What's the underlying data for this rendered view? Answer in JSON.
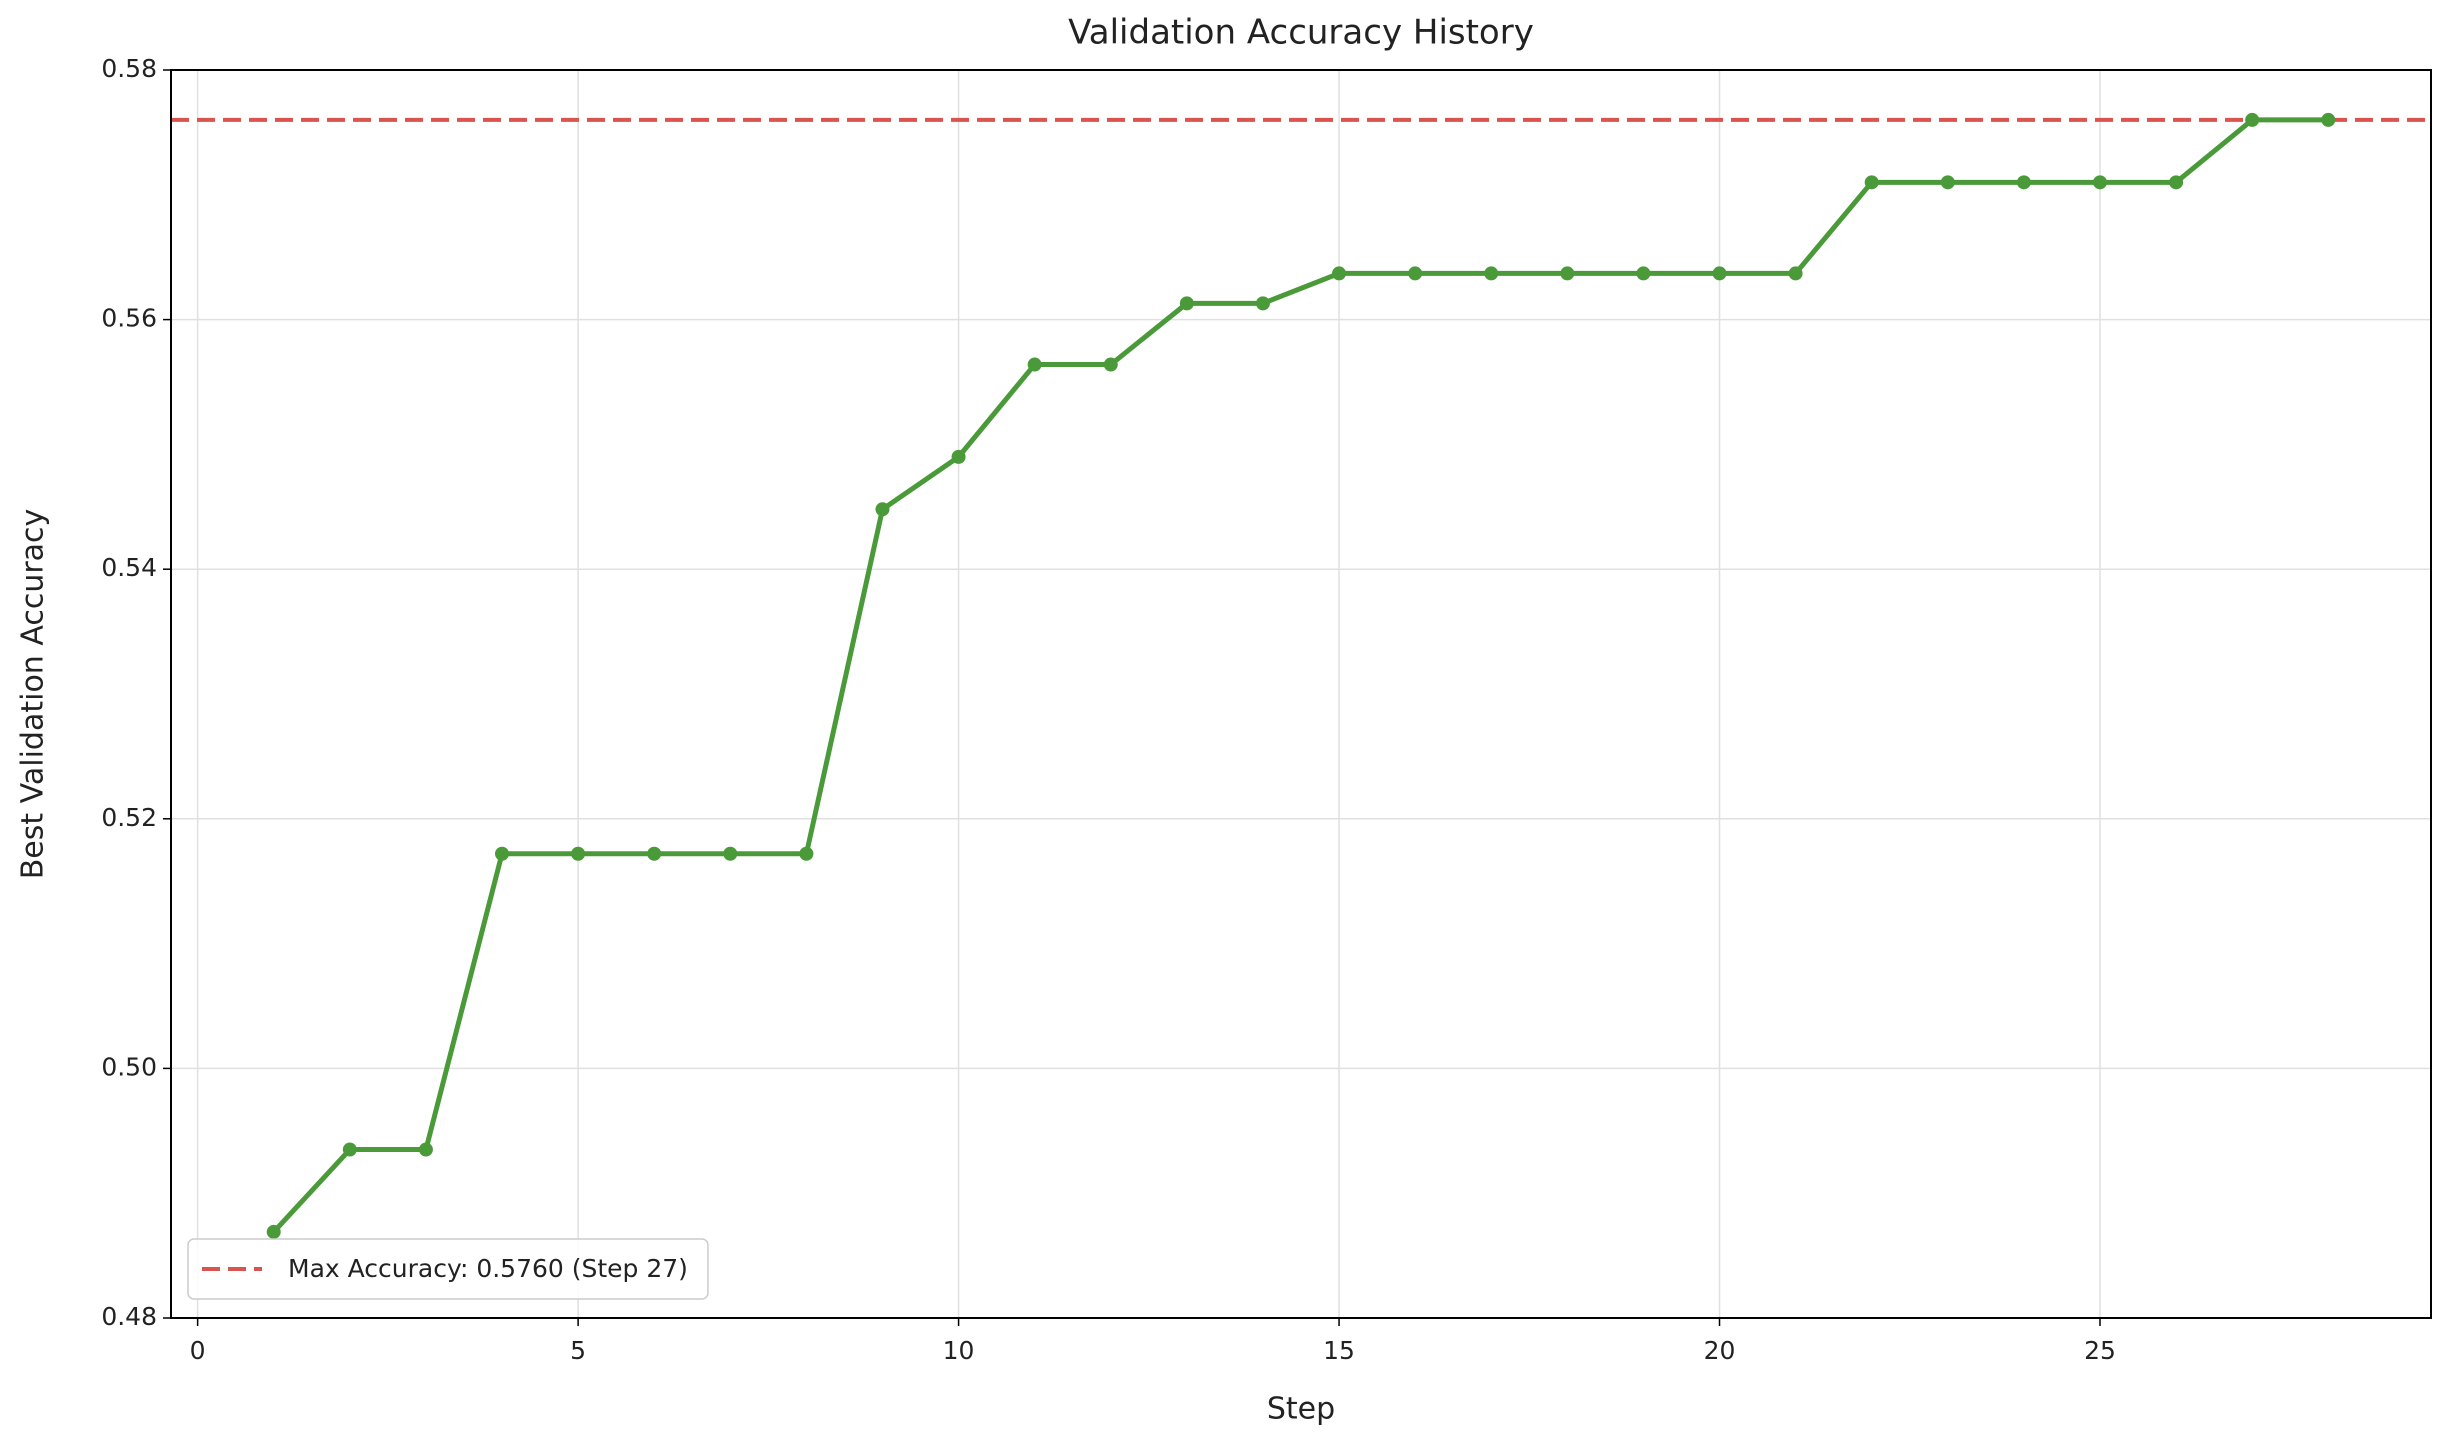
{
  "chart_data": {
    "type": "line",
    "title": "Validation Accuracy History",
    "x_label": "Step",
    "y_label": "Best Validation Accuracy",
    "x": [
      1,
      2,
      3,
      4,
      5,
      6,
      7,
      8,
      9,
      10,
      11,
      12,
      13,
      14,
      15,
      16,
      17,
      18,
      19,
      20,
      21,
      22,
      23,
      24,
      25,
      26,
      27,
      28
    ],
    "series": [
      {
        "color": "#4a9a3a",
        "marker": true,
        "values": [
          0.4869,
          0.4935,
          0.4935,
          0.5172,
          0.5172,
          0.5172,
          0.5172,
          0.5172,
          0.5448,
          0.549,
          0.5564,
          0.5564,
          0.5613,
          0.5613,
          0.5637,
          0.5637,
          0.5637,
          0.5637,
          0.5637,
          0.5637,
          0.5637,
          0.571,
          0.571,
          0.571,
          0.571,
          0.571,
          0.576,
          0.576
        ]
      }
    ],
    "reference_line": {
      "value": 0.576,
      "label": "Max Accuracy: 0.5760 (Step 27)",
      "color": "#d9534f",
      "style": "dashed"
    },
    "xlim": [
      -0.35,
      29.35
    ],
    "xticks": [
      0,
      5,
      10,
      15,
      20,
      25
    ],
    "ylim": [
      0.48,
      0.58
    ],
    "yticks": [
      0.48,
      {
        "value": 0.5,
        "label": "0.50"
      },
      0.52,
      0.54,
      0.56,
      0.58
    ],
    "grid": true,
    "legend_position": "lower left"
  }
}
